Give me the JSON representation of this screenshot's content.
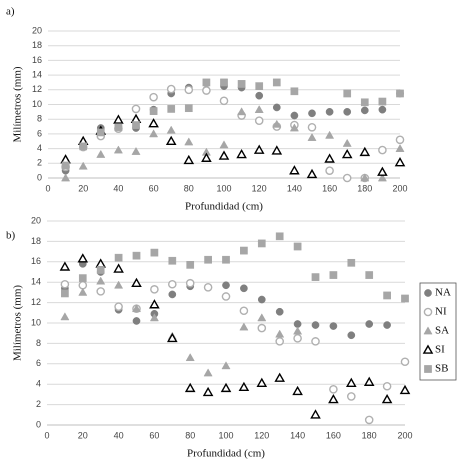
{
  "chart_data": [
    {
      "type": "scatter",
      "panel_label": "a)",
      "x_label": "Profundidad (cm)",
      "y_label": "Milímetros (mm)",
      "xlim": [
        0,
        200
      ],
      "xticks": [
        0,
        20,
        40,
        60,
        80,
        100,
        120,
        140,
        160,
        180,
        200
      ],
      "ylim": [
        0,
        20
      ],
      "yticks": [
        0,
        2,
        4,
        6,
        8,
        10,
        12,
        14,
        16,
        18,
        20
      ],
      "grid": true,
      "x": [
        10,
        20,
        30,
        40,
        50,
        60,
        70,
        80,
        90,
        100,
        110,
        120,
        130,
        140,
        150,
        160,
        170,
        180,
        190,
        200
      ],
      "series": [
        {
          "color": "#7f7f7f",
          "marker": "circle",
          "filled": true,
          "values": [
            1.0,
            4.5,
            6.8,
            7.0,
            6.8,
            9.3,
            11.5,
            12.3,
            12.0,
            12.5,
            12.3,
            11.2,
            9.6,
            8.5,
            8.8,
            9.0,
            9.0,
            9.2,
            9.3,
            11.5
          ]
        },
        {
          "color": "#b0b0b0",
          "marker": "circle",
          "filled": false,
          "values": [
            1.5,
            4.2,
            5.7,
            6.7,
            9.4,
            11.0,
            12.1,
            12.0,
            11.9,
            10.5,
            8.5,
            7.8,
            7.0,
            7.2,
            6.9,
            1.0,
            0.0,
            0.0,
            3.8,
            5.2
          ]
        },
        {
          "color": "#a6a6a6",
          "marker": "triangle",
          "filled": true,
          "values": [
            0.0,
            1.6,
            3.2,
            3.8,
            3.6,
            6.0,
            6.5,
            4.9,
            3.5,
            4.5,
            9.0,
            9.3,
            7.3,
            6.8,
            5.5,
            5.8,
            4.7,
            0.0,
            0.0,
            4.0
          ]
        },
        {
          "color": "#000000",
          "marker": "triangle",
          "filled": false,
          "values": [
            2.5,
            5.0,
            6.4,
            7.9,
            8.0,
            7.4,
            5.0,
            2.4,
            2.7,
            3.0,
            3.2,
            3.8,
            3.7,
            1.0,
            0.5,
            2.6,
            3.2,
            3.5,
            0.8,
            2.1
          ]
        },
        {
          "color": "#a6a6a6",
          "marker": "square",
          "filled": true,
          "values": [
            1.7,
            4.3,
            6.2,
            6.9,
            7.2,
            9.1,
            9.4,
            9.5,
            13.0,
            13.0,
            12.8,
            12.5,
            13.0,
            11.8,
            null,
            null,
            11.5,
            10.3,
            10.4,
            11.5
          ]
        }
      ]
    },
    {
      "type": "scatter",
      "panel_label": "b)",
      "x_label": "Profundidad (cm)",
      "y_label": "Milímetros (mm)",
      "xlim": [
        0,
        200
      ],
      "xticks": [
        0,
        20,
        40,
        60,
        80,
        100,
        120,
        140,
        160,
        180,
        200
      ],
      "ylim": [
        0,
        20
      ],
      "yticks": [
        0,
        2,
        4,
        6,
        8,
        10,
        12,
        14,
        16,
        18,
        20
      ],
      "grid": true,
      "legend": "right",
      "x": [
        10,
        20,
        30,
        40,
        50,
        60,
        70,
        80,
        90,
        100,
        110,
        120,
        130,
        140,
        150,
        160,
        170,
        180,
        190,
        200
      ],
      "series": [
        {
          "name": "NA",
          "color": "#7f7f7f",
          "marker": "circle",
          "filled": true,
          "values": [
            13.4,
            15.8,
            15.0,
            11.3,
            10.2,
            10.9,
            12.8,
            13.6,
            13.5,
            13.7,
            13.4,
            12.3,
            11.1,
            9.9,
            9.8,
            9.7,
            8.8,
            9.9,
            9.8,
            null
          ]
        },
        {
          "name": "NI",
          "color": "#b0b0b0",
          "marker": "circle",
          "filled": false,
          "values": [
            13.8,
            13.7,
            13.1,
            11.6,
            11.4,
            13.3,
            13.8,
            13.9,
            13.5,
            12.6,
            11.2,
            9.5,
            8.2,
            8.5,
            8.2,
            3.5,
            2.8,
            0.5,
            3.8,
            6.2
          ]
        },
        {
          "name": "SA",
          "color": "#a6a6a6",
          "marker": "triangle",
          "filled": true,
          "values": [
            10.6,
            13.0,
            14.1,
            13.7,
            11.4,
            10.5,
            8.7,
            6.6,
            5.1,
            5.8,
            9.6,
            10.5,
            8.9,
            9.2,
            null,
            null,
            null,
            null,
            null,
            null
          ]
        },
        {
          "name": "SI",
          "color": "#000000",
          "marker": "triangle",
          "filled": false,
          "values": [
            15.5,
            16.3,
            15.8,
            15.3,
            13.9,
            11.8,
            8.5,
            3.6,
            3.2,
            3.6,
            3.7,
            4.1,
            4.6,
            3.3,
            1.0,
            2.5,
            4.1,
            4.2,
            2.5,
            3.4
          ]
        },
        {
          "name": "SB",
          "color": "#a6a6a6",
          "marker": "square",
          "filled": true,
          "values": [
            12.9,
            14.4,
            15.2,
            16.4,
            16.6,
            16.9,
            16.1,
            15.7,
            16.2,
            16.2,
            17.1,
            17.8,
            18.5,
            17.5,
            14.5,
            14.7,
            15.9,
            14.7,
            12.7,
            12.4
          ]
        }
      ]
    }
  ]
}
